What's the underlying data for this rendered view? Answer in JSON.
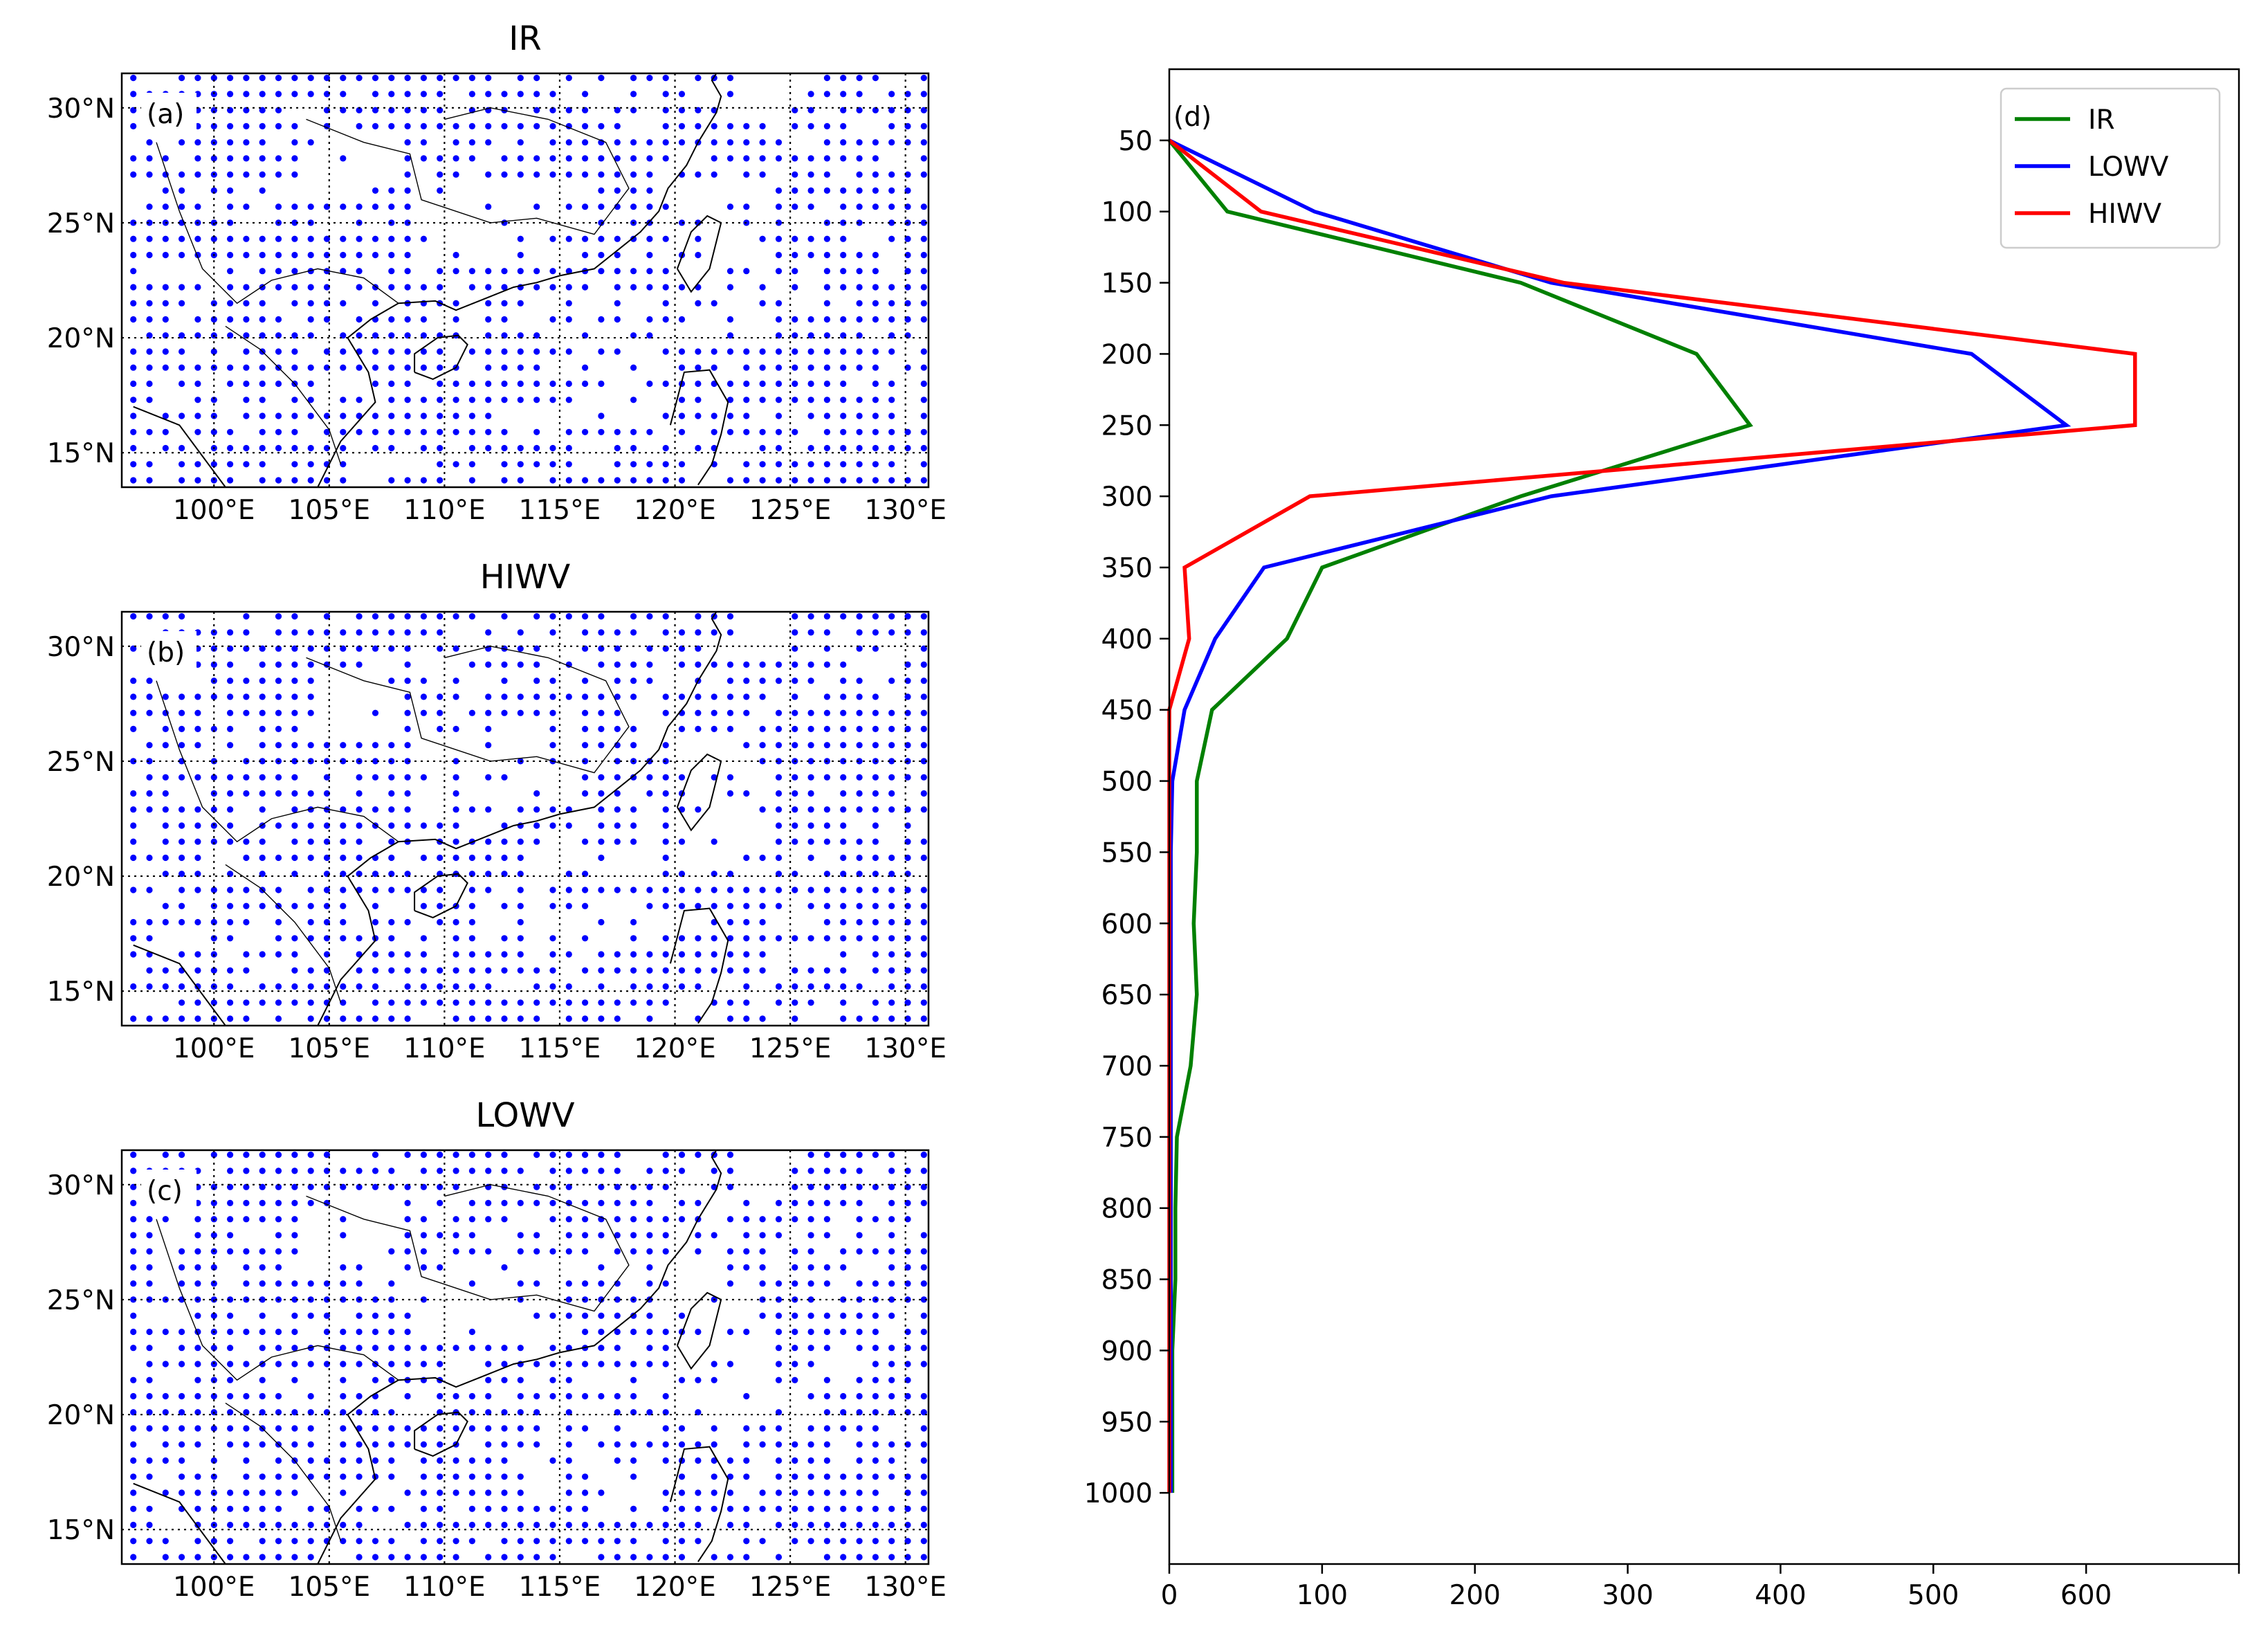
{
  "maps": [
    {
      "id": "a",
      "title": "IR",
      "panel_label": "(a)"
    },
    {
      "id": "b",
      "title": "HIWV",
      "panel_label": "(b)"
    },
    {
      "id": "c",
      "title": "LOWV",
      "panel_label": "(c)"
    }
  ],
  "map_axes": {
    "lon_ticks": [
      "100°E",
      "105°E",
      "110°E",
      "115°E",
      "120°E",
      "125°E",
      "130°E"
    ],
    "lat_ticks": [
      "30°N",
      "25°N",
      "20°N",
      "15°N"
    ],
    "lon_range": [
      96,
      131
    ],
    "lat_range": [
      13.5,
      31.5
    ],
    "point_color": "#0000ff",
    "coast_color": "#000000"
  },
  "chart_data": {
    "type": "line",
    "panel_label": "(d)",
    "xlim": [
      0,
      700
    ],
    "x_ticks": [
      0,
      100,
      200,
      300,
      400,
      500,
      600
    ],
    "ylim": [
      1050,
      0
    ],
    "y_ticks": [
      50,
      100,
      150,
      200,
      250,
      300,
      350,
      400,
      450,
      500,
      550,
      600,
      650,
      700,
      750,
      800,
      850,
      900,
      950,
      1000
    ],
    "legend_position": "top-right",
    "series": [
      {
        "name": "IR",
        "color": "#008000",
        "points": [
          [
            0,
            50
          ],
          [
            38,
            100
          ],
          [
            230,
            150
          ],
          [
            345,
            200
          ],
          [
            380,
            250
          ],
          [
            230,
            300
          ],
          [
            100,
            350
          ],
          [
            77,
            400
          ],
          [
            28,
            450
          ],
          [
            18,
            500
          ],
          [
            18,
            550
          ],
          [
            16,
            600
          ],
          [
            18,
            650
          ],
          [
            14,
            700
          ],
          [
            5,
            750
          ],
          [
            4,
            800
          ],
          [
            4,
            850
          ],
          [
            2,
            900
          ],
          [
            2,
            950
          ],
          [
            2,
            1000
          ]
        ]
      },
      {
        "name": "LOWV",
        "color": "#0000ff",
        "points": [
          [
            0,
            50
          ],
          [
            95,
            100
          ],
          [
            250,
            150
          ],
          [
            525,
            200
          ],
          [
            587,
            250
          ],
          [
            250,
            300
          ],
          [
            62,
            350
          ],
          [
            30,
            400
          ],
          [
            10,
            450
          ],
          [
            2,
            500
          ],
          [
            1,
            550
          ],
          [
            1,
            600
          ],
          [
            1,
            650
          ],
          [
            1,
            700
          ],
          [
            1,
            750
          ],
          [
            1,
            800
          ],
          [
            1,
            850
          ],
          [
            1,
            900
          ],
          [
            1,
            950
          ],
          [
            1,
            1000
          ]
        ]
      },
      {
        "name": "HIWV",
        "color": "#ff0000",
        "points": [
          [
            0,
            50
          ],
          [
            60,
            100
          ],
          [
            258,
            150
          ],
          [
            632,
            200
          ],
          [
            632,
            250
          ],
          [
            92,
            300
          ],
          [
            10,
            350
          ],
          [
            13,
            400
          ],
          [
            0,
            450
          ],
          [
            0,
            500
          ],
          [
            0,
            550
          ],
          [
            0,
            600
          ],
          [
            0,
            650
          ],
          [
            0,
            700
          ],
          [
            0,
            750
          ],
          [
            0,
            800
          ],
          [
            0,
            850
          ],
          [
            0,
            900
          ],
          [
            0,
            950
          ],
          [
            0,
            1000
          ]
        ]
      }
    ]
  }
}
